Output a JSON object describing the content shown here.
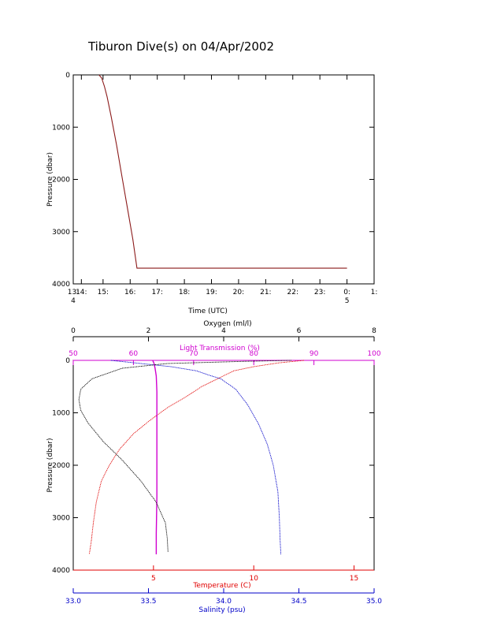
{
  "title": "Tiburon Dive(s) on 04/Apr/2002",
  "colors": {
    "axis": "#000000",
    "trace_time": "#8b1a1a",
    "temperature": "#e00000",
    "salinity": "#0000c8",
    "light_transmission": "#d000d0",
    "oxygen": "#000000"
  },
  "chart_data": [
    {
      "type": "line",
      "title": "Tiburon Dive(s) on 04/Apr/2002",
      "xlabel": "Time (UTC)",
      "ylabel": "Pressure (dbar)",
      "xlim": [
        13.9,
        25.0
      ],
      "ylim": [
        4000,
        0
      ],
      "y_inverted": true,
      "x_ticks": [
        {
          "value": 13.9,
          "label": "13:"
        },
        {
          "value": 14.2,
          "label": "14:"
        },
        {
          "value": 15.0,
          "label": "15:"
        },
        {
          "value": 16.0,
          "label": "16:"
        },
        {
          "value": 17.0,
          "label": "17:"
        },
        {
          "value": 18.0,
          "label": "18:"
        },
        {
          "value": 19.0,
          "label": "19:"
        },
        {
          "value": 20.0,
          "label": "20:"
        },
        {
          "value": 21.0,
          "label": "21:"
        },
        {
          "value": 22.0,
          "label": "22:"
        },
        {
          "value": 23.0,
          "label": "23:"
        },
        {
          "value": 24.0,
          "label": "0:"
        },
        {
          "value": 25.0,
          "label": "1:"
        }
      ],
      "x_subticks": [
        {
          "value": 13.9,
          "label": "4"
        },
        {
          "value": 24.0,
          "label": "5"
        }
      ],
      "y_ticks": [
        0,
        1000,
        2000,
        3000,
        4000
      ],
      "series": [
        {
          "x": [
            14.85,
            14.95,
            15.05,
            15.15,
            15.3,
            15.5,
            15.7,
            15.9,
            16.1,
            16.25,
            17.0,
            18.0,
            19.0,
            20.0,
            21.0,
            22.0,
            23.0,
            24.0
          ],
          "y": [
            0,
            60,
            220,
            420,
            800,
            1350,
            1950,
            2550,
            3150,
            3700,
            3700,
            3700,
            3700,
            3700,
            3700,
            3700,
            3700,
            3700
          ]
        }
      ],
      "grid": false
    },
    {
      "type": "line",
      "ylabel": "Pressure (dbar)",
      "ylim": [
        4000,
        0
      ],
      "y_inverted": true,
      "y_ticks": [
        0,
        1000,
        2000,
        3000,
        4000
      ],
      "axes": {
        "oxygen": {
          "label": "Oxygen (ml/l)",
          "lim": [
            0,
            8
          ],
          "ticks": [
            0,
            2,
            4,
            6,
            8
          ]
        },
        "light_transmission": {
          "label": "Light Transmission (%)",
          "lim": [
            50,
            100
          ],
          "ticks": [
            50,
            60,
            70,
            80,
            90,
            100
          ]
        },
        "temperature": {
          "label": "Temperature (C)",
          "lim": [
            1.0,
            16.0
          ],
          "ticks": [
            5,
            10,
            15
          ]
        },
        "salinity": {
          "label": "Salinity (psu)",
          "lim": [
            33.0,
            35.0
          ],
          "ticks": [
            "33.0",
            "33.5",
            "34.0",
            "34.5",
            "35.0"
          ]
        }
      },
      "series": [
        {
          "axis": "temperature",
          "x": [
            12.5,
            11.2,
            10.0,
            9.0,
            8.2,
            7.4,
            6.6,
            5.7,
            4.8,
            4.0,
            3.3,
            2.8,
            2.4,
            2.15,
            2.0,
            1.9,
            1.8
          ],
          "y": [
            0,
            50,
            120,
            200,
            350,
            500,
            700,
            900,
            1150,
            1400,
            1700,
            2000,
            2300,
            2700,
            3100,
            3450,
            3700
          ]
        },
        {
          "axis": "salinity",
          "x": [
            33.25,
            33.45,
            33.65,
            33.82,
            33.9,
            33.98,
            34.08,
            34.16,
            34.23,
            34.29,
            34.33,
            34.36,
            34.37,
            34.375,
            34.38
          ],
          "y": [
            0,
            60,
            120,
            200,
            280,
            350,
            550,
            850,
            1200,
            1600,
            2000,
            2500,
            3000,
            3400,
            3700
          ]
        },
        {
          "axis": "light_transmission",
          "x": [
            63.2,
            63.4,
            63.6,
            63.8,
            63.9,
            63.9,
            63.9,
            63.9,
            63.8,
            63.8
          ],
          "y": [
            0,
            50,
            150,
            300,
            600,
            1000,
            1800,
            2600,
            3300,
            3700
          ]
        },
        {
          "axis": "oxygen",
          "x": [
            5.8,
            4.5,
            2.5,
            1.3,
            0.5,
            0.2,
            0.15,
            0.2,
            0.4,
            0.8,
            1.3,
            1.8,
            2.2,
            2.45,
            2.5,
            2.52
          ],
          "y": [
            0,
            20,
            60,
            150,
            350,
            550,
            750,
            950,
            1200,
            1550,
            1900,
            2300,
            2700,
            3100,
            3400,
            3650
          ]
        }
      ],
      "grid": false
    }
  ]
}
